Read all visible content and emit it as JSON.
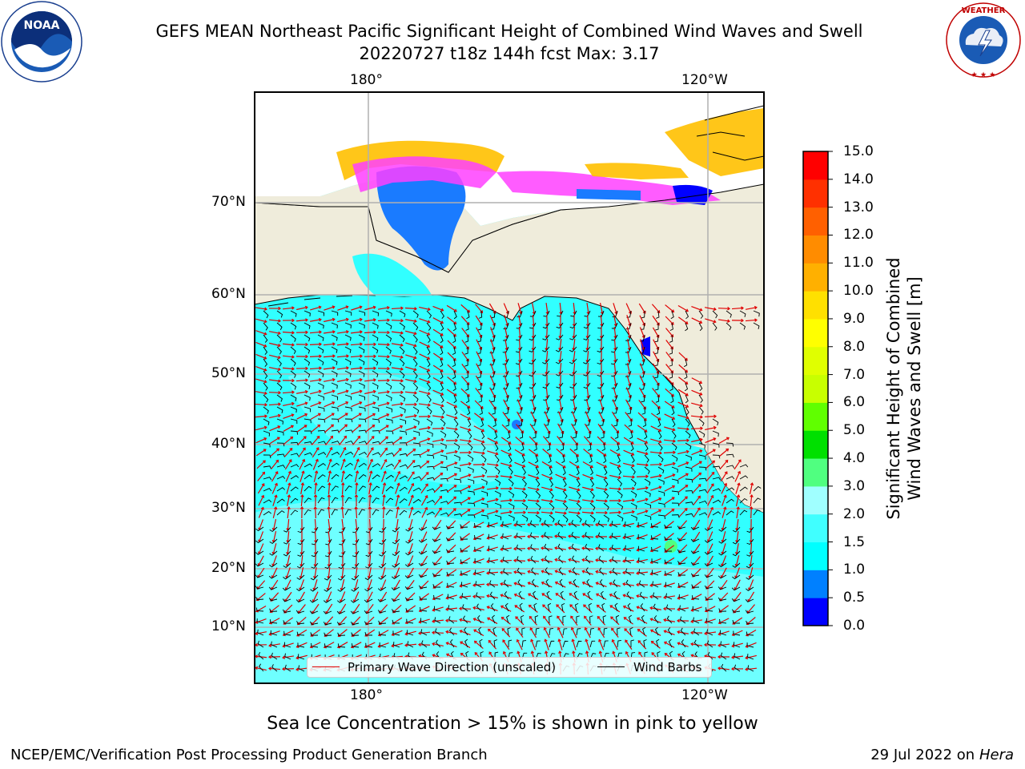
{
  "header": {
    "title": "GEFS MEAN Northeast Pacific Significant Height of Combined Wind Waves and Swell",
    "subtitle": "20220727 t18z 144h fcst   Max: 3.17",
    "left_logo": {
      "name": "NOAA",
      "ring_text": "NATIONAL OCEANIC AND ATMOSPHERIC ADMINISTRATION · U.S. DEPARTMENT OF COMMERCE"
    },
    "right_logo": {
      "name": "NATIONAL WEATHER SERVICE"
    }
  },
  "map": {
    "lon_labels_top": [
      "180°",
      "120°W"
    ],
    "lon_labels_bottom": [
      "180°",
      "120°W"
    ],
    "lat_labels": [
      "70°N",
      "60°N",
      "50°N",
      "40°N",
      "30°N",
      "20°N",
      "10°N"
    ],
    "legend": {
      "wave": "Primary Wave Direction (unscaled)",
      "wind": "Wind Barbs"
    },
    "colors": {
      "ocean": "#31ffff",
      "land": "#efecdb",
      "wave_arrow": "#e00000",
      "wind_barb": "#000000",
      "grid": "#b0b0b0"
    }
  },
  "colorbar": {
    "label_line1": "Significant Height of Combined",
    "label_line2": "Wind Waves and Swell [m]",
    "ticks": [
      "15.0",
      "14.0",
      "13.0",
      "12.0",
      "11.0",
      "10.0",
      "9.0",
      "8.0",
      "7.0",
      "6.0",
      "5.0",
      "4.0",
      "3.0",
      "2.0",
      "1.5",
      "1.0",
      "0.5",
      "0.0"
    ],
    "colors": [
      "#0000ff",
      "#0080ff",
      "#00ffff",
      "#40ffff",
      "#a0ffff",
      "#50ff80",
      "#00e000",
      "#60ff00",
      "#c8ff00",
      "#e0ff00",
      "#ffff00",
      "#ffe000",
      "#ffb000",
      "#ff8c00",
      "#ff6000",
      "#ff3000",
      "#ff0000"
    ]
  },
  "footer": {
    "ice_note": "Sea Ice Concentration > 15% is shown in pink to yellow",
    "left": "NCEP/EMC/Verification Post Processing Product Generation Branch",
    "right_date": "29 Jul 2022 on ",
    "right_machine": "Hera"
  }
}
